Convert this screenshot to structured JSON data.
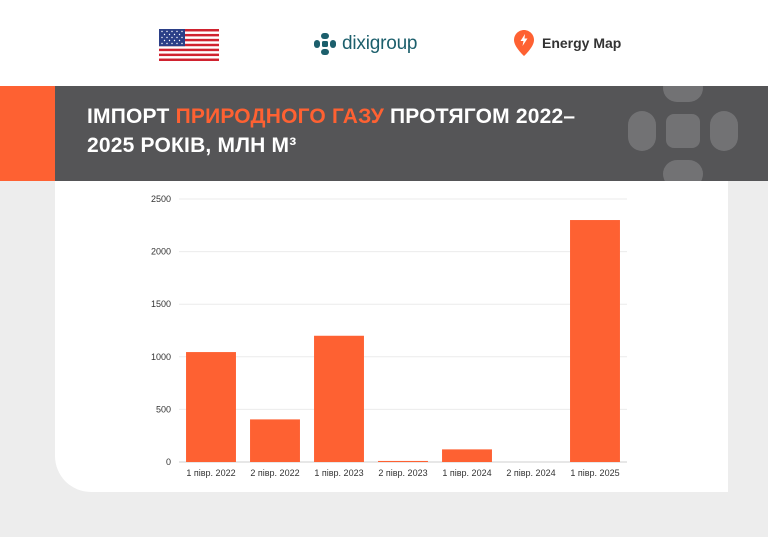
{
  "header": {
    "flag_icon": "usa-flag-icon",
    "dixi_logo_text": "dixigroup",
    "energy_map_text": "Energy Map"
  },
  "banner": {
    "title_part1": "ІМПОРТ ",
    "title_highlight": "ПРИРОДНОГО ГАЗУ",
    "title_part2": " ПРОТЯГОМ 2022–2025 РОКІВ, МЛН М³"
  },
  "colors": {
    "accent": "#fe6132",
    "banner_bg": "#555557",
    "dixi_teal": "#1c5f6c"
  },
  "chart_data": {
    "type": "bar",
    "categories": [
      "1 півр. 2022",
      "2 півр. 2022",
      "1 півр. 2023",
      "2 півр. 2023",
      "1 півр. 2024",
      "2 півр. 2024",
      "1 півр. 2025"
    ],
    "values": [
      1045,
      405,
      1200,
      10,
      120,
      0,
      2300
    ],
    "ylim": [
      0,
      2500
    ],
    "yticks": [
      0,
      500,
      1000,
      1500,
      2000,
      2500
    ],
    "grid": true,
    "color": "#fe6132"
  }
}
